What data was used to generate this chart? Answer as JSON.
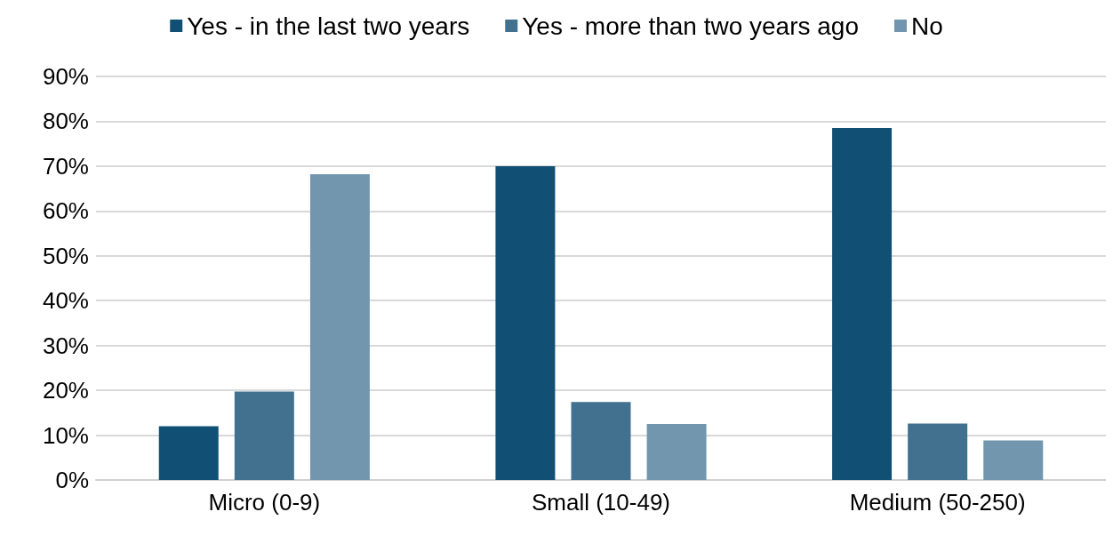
{
  "chart_data": {
    "type": "bar",
    "categories": [
      "Micro (0-9)",
      "Small (10-49)",
      "Medium (50-250)"
    ],
    "series": [
      {
        "name": "Yes - in the last two years",
        "color": "#124f74",
        "values": [
          12,
          70,
          78.5
        ]
      },
      {
        "name": "Yes - more than two years ago",
        "color": "#41718f",
        "values": [
          19.7,
          17.4,
          12.6
        ]
      },
      {
        "name": "No",
        "color": "#7296ae",
        "values": [
          68.2,
          12.5,
          8.8
        ]
      }
    ],
    "ylim": [
      0,
      90
    ],
    "yticks": [
      {
        "value": 0,
        "label": "0%"
      },
      {
        "value": 10,
        "label": "10%"
      },
      {
        "value": 20,
        "label": "20%"
      },
      {
        "value": 30,
        "label": "30%"
      },
      {
        "value": 40,
        "label": "40%"
      },
      {
        "value": 50,
        "label": "50%"
      },
      {
        "value": 60,
        "label": "60%"
      },
      {
        "value": 70,
        "label": "70%"
      },
      {
        "value": 80,
        "label": "80%"
      },
      {
        "value": 90,
        "label": "90%"
      }
    ],
    "grid": "y",
    "legend": "top"
  }
}
